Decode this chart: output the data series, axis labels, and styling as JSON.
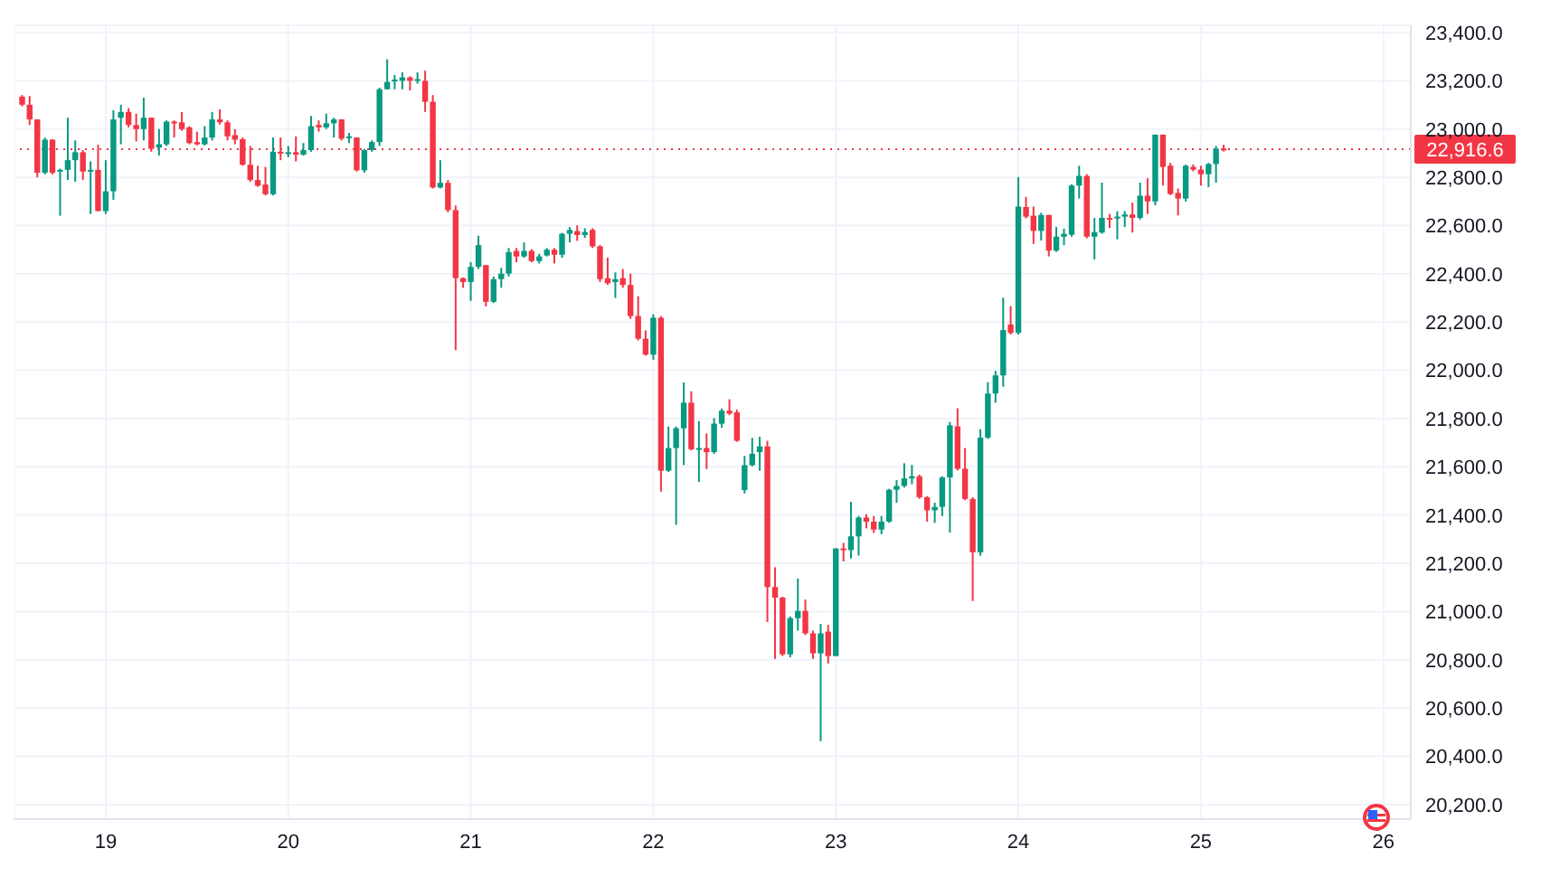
{
  "chart_data": {
    "type": "candlestick",
    "x": [
      18.542,
      18.583,
      18.625,
      18.667,
      18.708,
      18.75,
      18.792,
      18.833,
      18.875,
      18.917,
      18.958,
      19.0,
      19.042,
      19.083,
      19.125,
      19.167,
      19.208,
      19.25,
      19.292,
      19.333,
      19.375,
      19.417,
      19.458,
      19.5,
      19.542,
      19.583,
      19.625,
      19.667,
      19.708,
      19.75,
      19.792,
      19.833,
      19.875,
      19.917,
      19.958,
      20.0,
      20.042,
      20.083,
      20.125,
      20.167,
      20.208,
      20.25,
      20.292,
      20.333,
      20.375,
      20.417,
      20.458,
      20.5,
      20.542,
      20.583,
      20.625,
      20.667,
      20.708,
      20.75,
      20.792,
      20.833,
      20.875,
      20.917,
      20.958,
      21.0,
      21.042,
      21.083,
      21.125,
      21.167,
      21.208,
      21.25,
      21.292,
      21.333,
      21.375,
      21.417,
      21.458,
      21.5,
      21.542,
      21.583,
      21.625,
      21.667,
      21.708,
      21.75,
      21.792,
      21.833,
      21.875,
      21.917,
      21.958,
      22.0,
      22.042,
      22.083,
      22.125,
      22.167,
      22.208,
      22.25,
      22.292,
      22.333,
      22.375,
      22.417,
      22.458,
      22.5,
      22.542,
      22.583,
      22.625,
      22.667,
      22.708,
      22.75,
      22.792,
      22.833,
      22.875,
      22.917,
      22.958,
      23.0,
      23.042,
      23.083,
      23.125,
      23.167,
      23.208,
      23.25,
      23.292,
      23.333,
      23.375,
      23.417,
      23.458,
      23.5,
      23.542,
      23.583,
      23.625,
      23.667,
      23.708,
      23.75,
      23.792,
      23.833,
      23.875,
      23.917,
      23.958,
      24.0,
      24.042,
      24.083,
      24.125,
      24.167,
      24.208,
      24.25,
      24.292,
      24.333,
      24.375,
      24.417,
      24.458,
      24.5,
      24.542,
      24.583,
      24.625,
      24.667,
      24.708,
      24.75,
      24.792,
      24.833,
      24.875,
      24.917,
      24.958,
      25.0,
      25.042,
      25.083,
      25.125
    ],
    "ohlc": [
      [
        23134,
        23141,
        23094,
        23101
      ],
      [
        23101,
        23137,
        23017,
        23040
      ],
      [
        23040,
        23040,
        22800,
        22819
      ],
      [
        22819,
        22965,
        22812,
        22956
      ],
      [
        22956,
        22958,
        22812,
        22819
      ],
      [
        22824,
        22836,
        22641,
        22831
      ],
      [
        22831,
        23047,
        22789,
        22871
      ],
      [
        22871,
        22953,
        22782,
        22904
      ],
      [
        22904,
        22913,
        22789,
        22824
      ],
      [
        22824,
        22866,
        22648,
        22831
      ],
      [
        22831,
        22935,
        22660,
        22660
      ],
      [
        22660,
        22871,
        22648,
        22742
      ],
      [
        22742,
        23078,
        22707,
        23040
      ],
      [
        23047,
        23101,
        22937,
        23071
      ],
      [
        23071,
        23087,
        23007,
        23017
      ],
      [
        23017,
        23064,
        22949,
        23000
      ],
      [
        23000,
        23130,
        22953,
        23047
      ],
      [
        23047,
        23047,
        22906,
        22918
      ],
      [
        22923,
        23000,
        22890,
        22937
      ],
      [
        22937,
        23036,
        22930,
        23031
      ],
      [
        23031,
        23036,
        22965,
        23028
      ],
      [
        23028,
        23071,
        22993,
        23000
      ],
      [
        23007,
        23012,
        22937,
        22942
      ],
      [
        22946,
        22989,
        22932,
        22937
      ],
      [
        22937,
        23012,
        22932,
        22965
      ],
      [
        22965,
        23071,
        22953,
        23040
      ],
      [
        23040,
        23082,
        23019,
        23028
      ],
      [
        23028,
        23036,
        22953,
        22970
      ],
      [
        22975,
        23000,
        22937,
        22956
      ],
      [
        22958,
        22965,
        22848,
        22852
      ],
      [
        22852,
        22930,
        22782,
        22789
      ],
      [
        22789,
        22848,
        22761,
        22765
      ],
      [
        22770,
        22843,
        22725,
        22730
      ],
      [
        22730,
        22965,
        22725,
        22906
      ],
      [
        22906,
        22965,
        22871,
        22902
      ],
      [
        22897,
        22930,
        22883,
        22904
      ],
      [
        22904,
        22970,
        22866,
        22894
      ],
      [
        22894,
        22942,
        22890,
        22913
      ],
      [
        22913,
        23054,
        22906,
        23012
      ],
      [
        23017,
        23036,
        22989,
        23007
      ],
      [
        23007,
        23064,
        23000,
        23024
      ],
      [
        23024,
        23047,
        22965,
        23040
      ],
      [
        23040,
        23040,
        22953,
        22960
      ],
      [
        22965,
        22984,
        22942,
        22970
      ],
      [
        22965,
        22965,
        22824,
        22829
      ],
      [
        22829,
        22918,
        22819,
        22913
      ],
      [
        22913,
        22953,
        22906,
        22946
      ],
      [
        22946,
        23172,
        22930,
        23165
      ],
      [
        23165,
        23289,
        23165,
        23195
      ],
      [
        23200,
        23224,
        23165,
        23205
      ],
      [
        23200,
        23235,
        23165,
        23214
      ],
      [
        23214,
        23219,
        23160,
        23200
      ],
      [
        23200,
        23235,
        23188,
        23207
      ],
      [
        23200,
        23242,
        23071,
        23113
      ],
      [
        23113,
        23141,
        22754,
        22758
      ],
      [
        22758,
        22871,
        22754,
        22777
      ],
      [
        22777,
        22789,
        22655,
        22664
      ],
      [
        22664,
        22683,
        22084,
        22382
      ],
      [
        22382,
        22385,
        22342,
        22366
      ],
      [
        22366,
        22448,
        22288,
        22429
      ],
      [
        22429,
        22558,
        22420,
        22519
      ],
      [
        22436,
        22436,
        22265,
        22284
      ],
      [
        22284,
        22389,
        22279,
        22378
      ],
      [
        22378,
        22425,
        22342,
        22401
      ],
      [
        22401,
        22507,
        22389,
        22490
      ],
      [
        22495,
        22507,
        22448,
        22472
      ],
      [
        22472,
        22530,
        22467,
        22495
      ],
      [
        22495,
        22502,
        22448,
        22453
      ],
      [
        22453,
        22483,
        22443,
        22472
      ],
      [
        22476,
        22507,
        22472,
        22500
      ],
      [
        22500,
        22507,
        22443,
        22479
      ],
      [
        22479,
        22570,
        22467,
        22566
      ],
      [
        22566,
        22594,
        22530,
        22582
      ],
      [
        22577,
        22601,
        22537,
        22561
      ],
      [
        22561,
        22589,
        22549,
        22573
      ],
      [
        22582,
        22589,
        22507,
        22514
      ],
      [
        22514,
        22519,
        22366,
        22378
      ],
      [
        22382,
        22467,
        22354,
        22361
      ],
      [
        22366,
        22406,
        22300,
        22378
      ],
      [
        22382,
        22420,
        22342,
        22354
      ],
      [
        22354,
        22401,
        22213,
        22225
      ],
      [
        22225,
        22307,
        22124,
        22131
      ],
      [
        22131,
        22166,
        22061,
        22065
      ],
      [
        22065,
        22232,
        22044,
        22218
      ],
      [
        22218,
        22225,
        21497,
        21584
      ],
      [
        21584,
        21767,
        21579,
        21678
      ],
      [
        21678,
        21767,
        21360,
        21760
      ],
      [
        21760,
        21950,
        21607,
        21866
      ],
      [
        21866,
        21913,
        21668,
        21673
      ],
      [
        21673,
        21790,
        21537,
        21678
      ],
      [
        21678,
        21739,
        21591,
        21661
      ],
      [
        21661,
        21802,
        21654,
        21779
      ],
      [
        21779,
        21842,
        21762,
        21833
      ],
      [
        21833,
        21880,
        21814,
        21821
      ],
      [
        21826,
        21837,
        21704,
        21708
      ],
      [
        21504,
        21645,
        21490,
        21607
      ],
      [
        21607,
        21720,
        21602,
        21654
      ],
      [
        21661,
        21725,
        21584,
        21685
      ],
      [
        21685,
        21708,
        20957,
        21102
      ],
      [
        21102,
        21184,
        20804,
        21058
      ],
      [
        21058,
        21062,
        20816,
        20823
      ],
      [
        20823,
        20980,
        20811,
        20973
      ],
      [
        20973,
        21137,
        20921,
        21003
      ],
      [
        21003,
        21050,
        20903,
        20910
      ],
      [
        20910,
        20921,
        20804,
        20827
      ],
      [
        20827,
        20949,
        20463,
        20910
      ],
      [
        20917,
        20945,
        20785,
        20816
      ],
      [
        20816,
        21262,
        20816,
        21262
      ],
      [
        21262,
        21285,
        21208,
        21255
      ],
      [
        21255,
        21455,
        21220,
        21312
      ],
      [
        21312,
        21396,
        21232,
        21390
      ],
      [
        21390,
        21404,
        21345,
        21373
      ],
      [
        21373,
        21396,
        21326,
        21340
      ],
      [
        21340,
        21396,
        21321,
        21373
      ],
      [
        21373,
        21509,
        21368,
        21505
      ],
      [
        21505,
        21545,
        21451,
        21521
      ],
      [
        21521,
        21615,
        21514,
        21552
      ],
      [
        21552,
        21608,
        21528,
        21561
      ],
      [
        21561,
        21568,
        21467,
        21474
      ],
      [
        21474,
        21479,
        21373,
        21420
      ],
      [
        21420,
        21451,
        21368,
        21434
      ],
      [
        21434,
        21561,
        21396,
        21556
      ],
      [
        21556,
        21786,
        21328,
        21772
      ],
      [
        21768,
        21843,
        21585,
        21592
      ],
      [
        21592,
        21678,
        21462,
        21467
      ],
      [
        21467,
        21474,
        21044,
        21246
      ],
      [
        21246,
        21756,
        21232,
        21721
      ],
      [
        21721,
        21951,
        21716,
        21904
      ],
      [
        21904,
        21998,
        21866,
        21979
      ],
      [
        21979,
        22301,
        21932,
        22167
      ],
      [
        22190,
        22266,
        22148,
        22155
      ],
      [
        22155,
        22801,
        22148,
        22679
      ],
      [
        22677,
        22719,
        22630,
        22637
      ],
      [
        22641,
        22679,
        22524,
        22578
      ],
      [
        22578,
        22653,
        22538,
        22644
      ],
      [
        22644,
        22644,
        22472,
        22496
      ],
      [
        22496,
        22594,
        22491,
        22554
      ],
      [
        22554,
        22588,
        22519,
        22566
      ],
      [
        22562,
        22771,
        22554,
        22766
      ],
      [
        22766,
        22848,
        22712,
        22806
      ],
      [
        22806,
        22813,
        22547,
        22554
      ],
      [
        22554,
        22632,
        22460,
        22573
      ],
      [
        22571,
        22778,
        22566,
        22632
      ],
      [
        22632,
        22648,
        22590,
        22625
      ],
      [
        22630,
        22660,
        22543,
        22637
      ],
      [
        22637,
        22660,
        22594,
        22646
      ],
      [
        22646,
        22695,
        22571,
        22632
      ],
      [
        22632,
        22778,
        22625,
        22724
      ],
      [
        22724,
        22796,
        22648,
        22700
      ],
      [
        22700,
        22977,
        22684,
        22977
      ],
      [
        22977,
        22977,
        22766,
        22843
      ],
      [
        22848,
        22860,
        22726,
        22731
      ],
      [
        22735,
        22754,
        22642,
        22712
      ],
      [
        22712,
        22853,
        22700,
        22848
      ],
      [
        22843,
        22853,
        22825,
        22832
      ],
      [
        22832,
        22848,
        22766,
        22813
      ],
      [
        22813,
        22860,
        22759,
        22855
      ],
      [
        22855,
        22930,
        22778,
        22919
      ],
      [
        22919,
        22935,
        22907,
        22917
      ]
    ],
    "colors": [
      "#f23645",
      "#f23645",
      "#f23645",
      "#089981",
      "#f23645",
      "#089981",
      "#089981",
      "#089981",
      "#f23645",
      "#089981",
      "#f23645",
      "#089981",
      "#089981",
      "#089981",
      "#f23645",
      "#f23645",
      "#089981",
      "#f23645",
      "#089981",
      "#089981",
      "#f23645",
      "#f23645",
      "#f23645",
      "#f23645",
      "#089981",
      "#089981",
      "#f23645",
      "#f23645",
      "#f23645",
      "#f23645",
      "#f23645",
      "#f23645",
      "#f23645",
      "#089981",
      "#f23645",
      "#089981",
      "#f23645",
      "#089981",
      "#089981",
      "#f23645",
      "#089981",
      "#089981",
      "#f23645",
      "#089981",
      "#f23645",
      "#089981",
      "#089981",
      "#089981",
      "#089981",
      "#089981",
      "#089981",
      "#f23645",
      "#089981",
      "#f23645",
      "#f23645",
      "#089981",
      "#f23645",
      "#f23645",
      "#f23645",
      "#089981",
      "#089981",
      "#f23645",
      "#089981",
      "#089981",
      "#089981",
      "#f23645",
      "#089981",
      "#f23645",
      "#089981",
      "#089981",
      "#f23645",
      "#089981",
      "#089981",
      "#f23645",
      "#089981",
      "#f23645",
      "#f23645",
      "#f23645",
      "#089981",
      "#f23645",
      "#f23645",
      "#f23645",
      "#f23645",
      "#089981",
      "#f23645",
      "#089981",
      "#089981",
      "#089981",
      "#f23645",
      "#089981",
      "#f23645",
      "#089981",
      "#089981",
      "#f23645",
      "#f23645",
      "#089981",
      "#089981",
      "#089981",
      "#f23645",
      "#f23645",
      "#f23645",
      "#089981",
      "#089981",
      "#f23645",
      "#f23645",
      "#089981",
      "#f23645",
      "#089981",
      "#f23645",
      "#089981",
      "#089981",
      "#f23645",
      "#f23645",
      "#089981",
      "#089981",
      "#089981",
      "#089981",
      "#089981",
      "#f23645",
      "#f23645",
      "#089981",
      "#089981",
      "#089981",
      "#f23645",
      "#f23645",
      "#f23645",
      "#089981",
      "#089981",
      "#089981",
      "#089981",
      "#f23645",
      "#089981",
      "#f23645",
      "#f23645",
      "#089981",
      "#f23645",
      "#089981",
      "#089981",
      "#089981",
      "#089981",
      "#f23645",
      "#089981",
      "#089981",
      "#f23645",
      "#089981",
      "#089981",
      "#f23645",
      "#089981",
      "#f23645",
      "#089981",
      "#f23645",
      "#f23645",
      "#f23645",
      "#089981",
      "#f23645",
      "#f23645",
      "#089981",
      "#089981",
      "#f23645"
    ],
    "xlim": [
      18.5,
      26.15
    ],
    "xticks": [
      19,
      20,
      21,
      22,
      23,
      24,
      25,
      26
    ],
    "ylim": [
      20140,
      23430
    ],
    "yticks": [
      {
        "value": 20200,
        "label": "20,200.0"
      },
      {
        "value": 20400,
        "label": "20,400.0"
      },
      {
        "value": 20600,
        "label": "20,600.0"
      },
      {
        "value": 20800,
        "label": "20,800.0"
      },
      {
        "value": 21000,
        "label": "21,000.0"
      },
      {
        "value": 21200,
        "label": "21,200.0"
      },
      {
        "value": 21400,
        "label": "21,400.0"
      },
      {
        "value": 21600,
        "label": "21,600.0"
      },
      {
        "value": 21800,
        "label": "21,800.0"
      },
      {
        "value": 22000,
        "label": "22,000.0"
      },
      {
        "value": 22200,
        "label": "22,200.0"
      },
      {
        "value": 22400,
        "label": "22,400.0"
      },
      {
        "value": 22600,
        "label": "22,600.0"
      },
      {
        "value": 22800,
        "label": "22,800.0"
      },
      {
        "value": 23000,
        "label": "23,000.0"
      },
      {
        "value": 23200,
        "label": "23,200.0"
      },
      {
        "value": 23400,
        "label": "23,400.0"
      }
    ],
    "ref_lines": [
      {
        "axis": "y",
        "value": 22916.6,
        "label": "22,916.6",
        "color": "#f23645",
        "line_style": "dotted"
      }
    ],
    "grid": true
  }
}
